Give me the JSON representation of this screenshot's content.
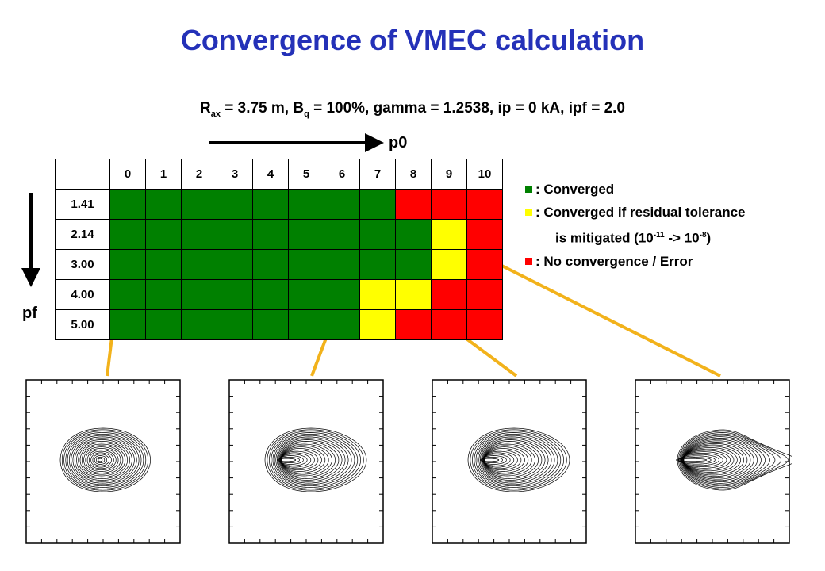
{
  "title": "Convergence of VMEC calculation",
  "subtitle": {
    "rax_sym": "R",
    "rax_sub": "ax",
    "rax_val": " = 3.75 m, B",
    "bq_sub": "q",
    "rest": " = 100%, gamma = 1.2538, ip = 0 kA, ipf = 2.0"
  },
  "axis_labels": {
    "x": "p0",
    "y": "pf"
  },
  "columns": [
    "0",
    "1",
    "2",
    "3",
    "4",
    "5",
    "6",
    "7",
    "8",
    "9",
    "10"
  ],
  "rows": [
    {
      "label": "1.41",
      "status": [
        "G",
        "G",
        "G",
        "G",
        "G",
        "G",
        "G",
        "G",
        "R",
        "R",
        "R"
      ]
    },
    {
      "label": "2.14",
      "status": [
        "G",
        "G",
        "G",
        "G",
        "G",
        "G",
        "G",
        "G",
        "G",
        "Y",
        "R"
      ]
    },
    {
      "label": "3.00",
      "status": [
        "G",
        "G",
        "G",
        "G",
        "G",
        "G",
        "G",
        "G",
        "G",
        "Y",
        "R"
      ]
    },
    {
      "label": "4.00",
      "status": [
        "G",
        "G",
        "G",
        "G",
        "G",
        "G",
        "G",
        "Y",
        "Y",
        "R",
        "R"
      ]
    },
    {
      "label": "5.00",
      "status": [
        "G",
        "G",
        "G",
        "G",
        "G",
        "G",
        "G",
        "Y",
        "R",
        "R",
        "R"
      ]
    }
  ],
  "colors": {
    "G": "#008000",
    "Y": "#ffff00",
    "R": "#ff0000",
    "arrow": "#f2b21b",
    "title": "#2431b8"
  },
  "legend": {
    "converged": ": Converged",
    "mitigated_line1": ": Converged if residual tolerance",
    "mitigated_pre": "is mitigated (10",
    "mitigated_exp1": "-11",
    "mitigated_mid": " -> 10",
    "mitigated_exp2": "-8",
    "mitigated_post": ")",
    "error": ": No convergence / Error"
  },
  "plots": [
    {
      "name": "flux-surfaces-case-a",
      "shape": "ellipse"
    },
    {
      "name": "flux-surfaces-case-b",
      "shape": "compressed"
    },
    {
      "name": "flux-surfaces-case-c",
      "shape": "compressed"
    },
    {
      "name": "flux-surfaces-case-d",
      "shape": "tail"
    }
  ]
}
